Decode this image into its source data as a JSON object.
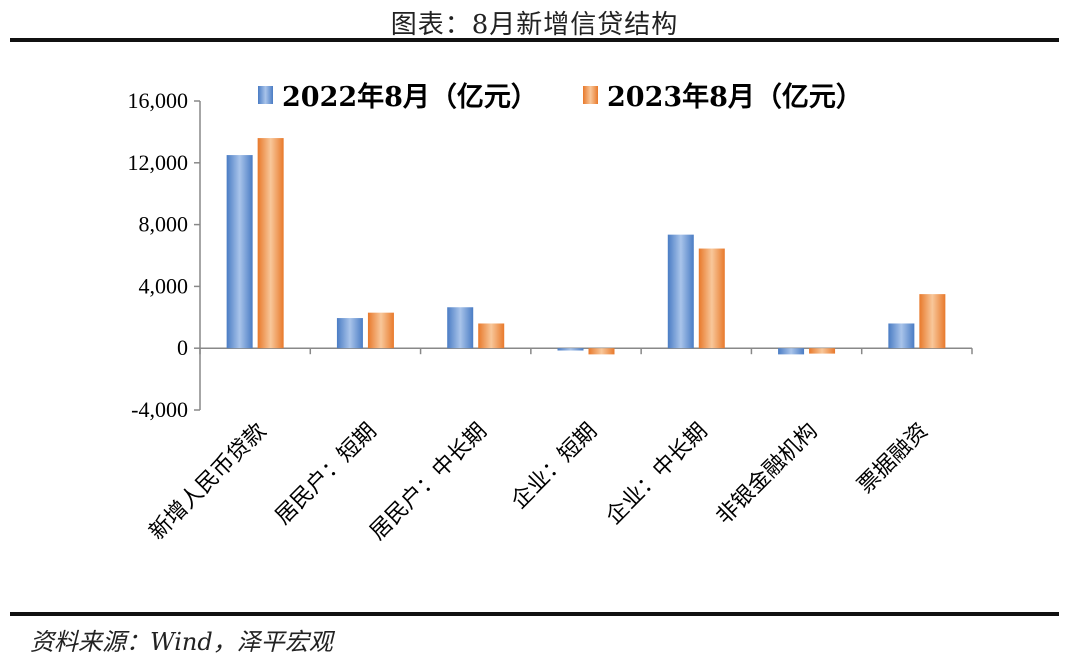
{
  "page_title": "图表：8月新增信贷结构",
  "source": "资料来源：Wind，泽平宏观",
  "colors": {
    "series_2022": "#4a7cc4",
    "series_2022_light": "#a9c4ea",
    "series_2023": "#e8792b",
    "series_2023_light": "#f8c79a",
    "axis": "#888888"
  },
  "chart_data": {
    "type": "bar",
    "title": "",
    "xlabel": "",
    "ylabel": "",
    "ylim": [
      -4000,
      16000
    ],
    "yticks": [
      -4000,
      0,
      4000,
      8000,
      12000,
      16000
    ],
    "ytick_labels": [
      "-4,000",
      "0",
      "4,000",
      "8,000",
      "12,000",
      "16,000"
    ],
    "legend_position": "top",
    "grid": false,
    "categories": [
      "新增人民币贷款",
      "居民户：短期",
      "居民户：中长期",
      "企业：短期",
      "企业：中长期",
      "非银金融机构",
      "票据融资"
    ],
    "series": [
      {
        "name": "2022年8月（亿元）",
        "values": [
          12500,
          1950,
          2650,
          -150,
          7350,
          -400,
          1600
        ]
      },
      {
        "name": "2023年8月（亿元）",
        "values": [
          13600,
          2300,
          1600,
          -400,
          6450,
          -350,
          3500
        ]
      }
    ]
  }
}
